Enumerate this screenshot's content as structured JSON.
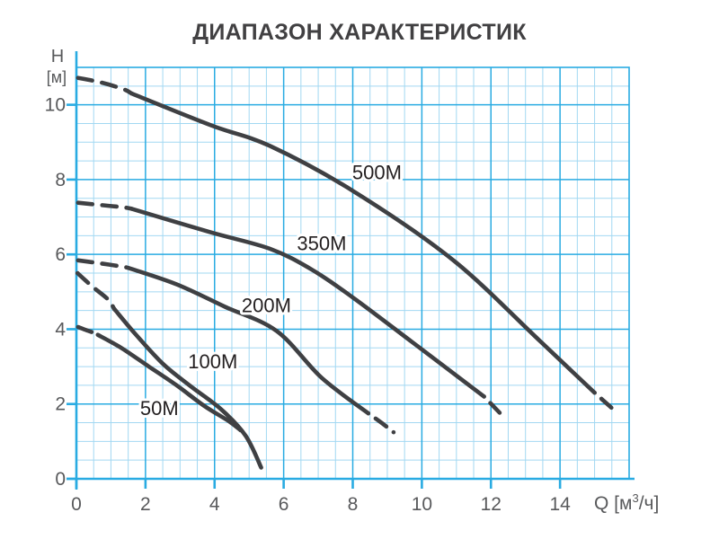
{
  "chart_data": {
    "type": "line",
    "title": "ДИАПАЗОН ХАРАКТЕРИСТИК",
    "grid": true,
    "legend_position": "inline-labels",
    "x_axis": {
      "label_prefix": "Q [м",
      "label_sup": "3",
      "label_suffix": "/ч]",
      "ticks": [
        0,
        2,
        4,
        6,
        8,
        10,
        12,
        14
      ],
      "min": 0,
      "max": 16,
      "minor_step": 0.5
    },
    "y_axis": {
      "label_line1": "H",
      "label_line2": "[м]",
      "ticks": [
        0,
        2,
        4,
        6,
        8,
        10
      ],
      "min": 0,
      "max": 11,
      "minor_step": 0.5
    },
    "colors": {
      "axis": "#29abe2",
      "grid_major": "#29abe2",
      "grid_minor": "#a2d8f2",
      "curve": "#3f4043",
      "tick_text": "#58595b",
      "title_text": "#414042",
      "label_text": "#231f20",
      "background": "#ffffff"
    },
    "series": [
      {
        "name": "50M",
        "label": {
          "q": 2.4,
          "h": 1.9
        },
        "start_dash": [
          [
            0.05,
            4.06
          ],
          [
            0.3,
            3.97
          ],
          [
            0.52,
            3.9
          ]
        ],
        "solid": [
          [
            0.62,
            3.85
          ],
          [
            1.3,
            3.5
          ],
          [
            2.1,
            3.0
          ],
          [
            2.9,
            2.5
          ],
          [
            3.7,
            1.95
          ],
          [
            4.4,
            1.55
          ],
          [
            4.75,
            1.3
          ]
        ],
        "end_dash": []
      },
      {
        "name": "100M",
        "label": {
          "q": 3.95,
          "h": 3.15
        },
        "start_dash": [
          [
            0.03,
            5.5
          ],
          [
            0.45,
            5.15
          ],
          [
            0.91,
            4.8
          ]
        ],
        "solid": [
          [
            1.09,
            4.55
          ],
          [
            1.7,
            3.88
          ],
          [
            2.5,
            3.08
          ],
          [
            3.3,
            2.48
          ],
          [
            4.2,
            1.85
          ],
          [
            4.9,
            1.15
          ],
          [
            5.35,
            0.3
          ]
        ],
        "end_dash": []
      },
      {
        "name": "200M",
        "label": {
          "q": 5.5,
          "h": 4.65
        },
        "start_dash": [
          [
            0.05,
            5.84
          ],
          [
            0.7,
            5.76
          ],
          [
            1.35,
            5.67
          ]
        ],
        "solid": [
          [
            1.5,
            5.64
          ],
          [
            2.9,
            5.2
          ],
          [
            4.3,
            4.6
          ],
          [
            5.8,
            3.95
          ],
          [
            7.1,
            2.7
          ],
          [
            8.45,
            1.75
          ]
        ],
        "end_dash": [
          [
            8.9,
            1.45
          ],
          [
            9.35,
            1.12
          ]
        ]
      },
      {
        "name": "350M",
        "label": {
          "q": 7.1,
          "h": 6.3
        },
        "start_dash": [
          [
            0.05,
            7.38
          ],
          [
            0.7,
            7.32
          ],
          [
            1.35,
            7.26
          ]
        ],
        "solid": [
          [
            1.6,
            7.22
          ],
          [
            3.85,
            6.6
          ],
          [
            5.6,
            6.15
          ],
          [
            6.8,
            5.6
          ],
          [
            8.0,
            4.85
          ],
          [
            9.7,
            3.67
          ],
          [
            11.8,
            2.2
          ]
        ],
        "end_dash": [
          [
            12.3,
            1.72
          ]
        ]
      },
      {
        "name": "500M",
        "label": {
          "q": 8.7,
          "h": 8.2
        },
        "start_dash": [
          [
            0.05,
            10.72
          ],
          [
            0.7,
            10.6
          ],
          [
            1.35,
            10.42
          ]
        ],
        "solid": [
          [
            1.6,
            10.3
          ],
          [
            3.9,
            9.45
          ],
          [
            5.6,
            8.9
          ],
          [
            8.0,
            7.7
          ],
          [
            10.9,
            5.85
          ],
          [
            13.4,
            3.7
          ],
          [
            15.0,
            2.3
          ]
        ],
        "end_dash": [
          [
            15.55,
            1.85
          ]
        ]
      }
    ]
  }
}
